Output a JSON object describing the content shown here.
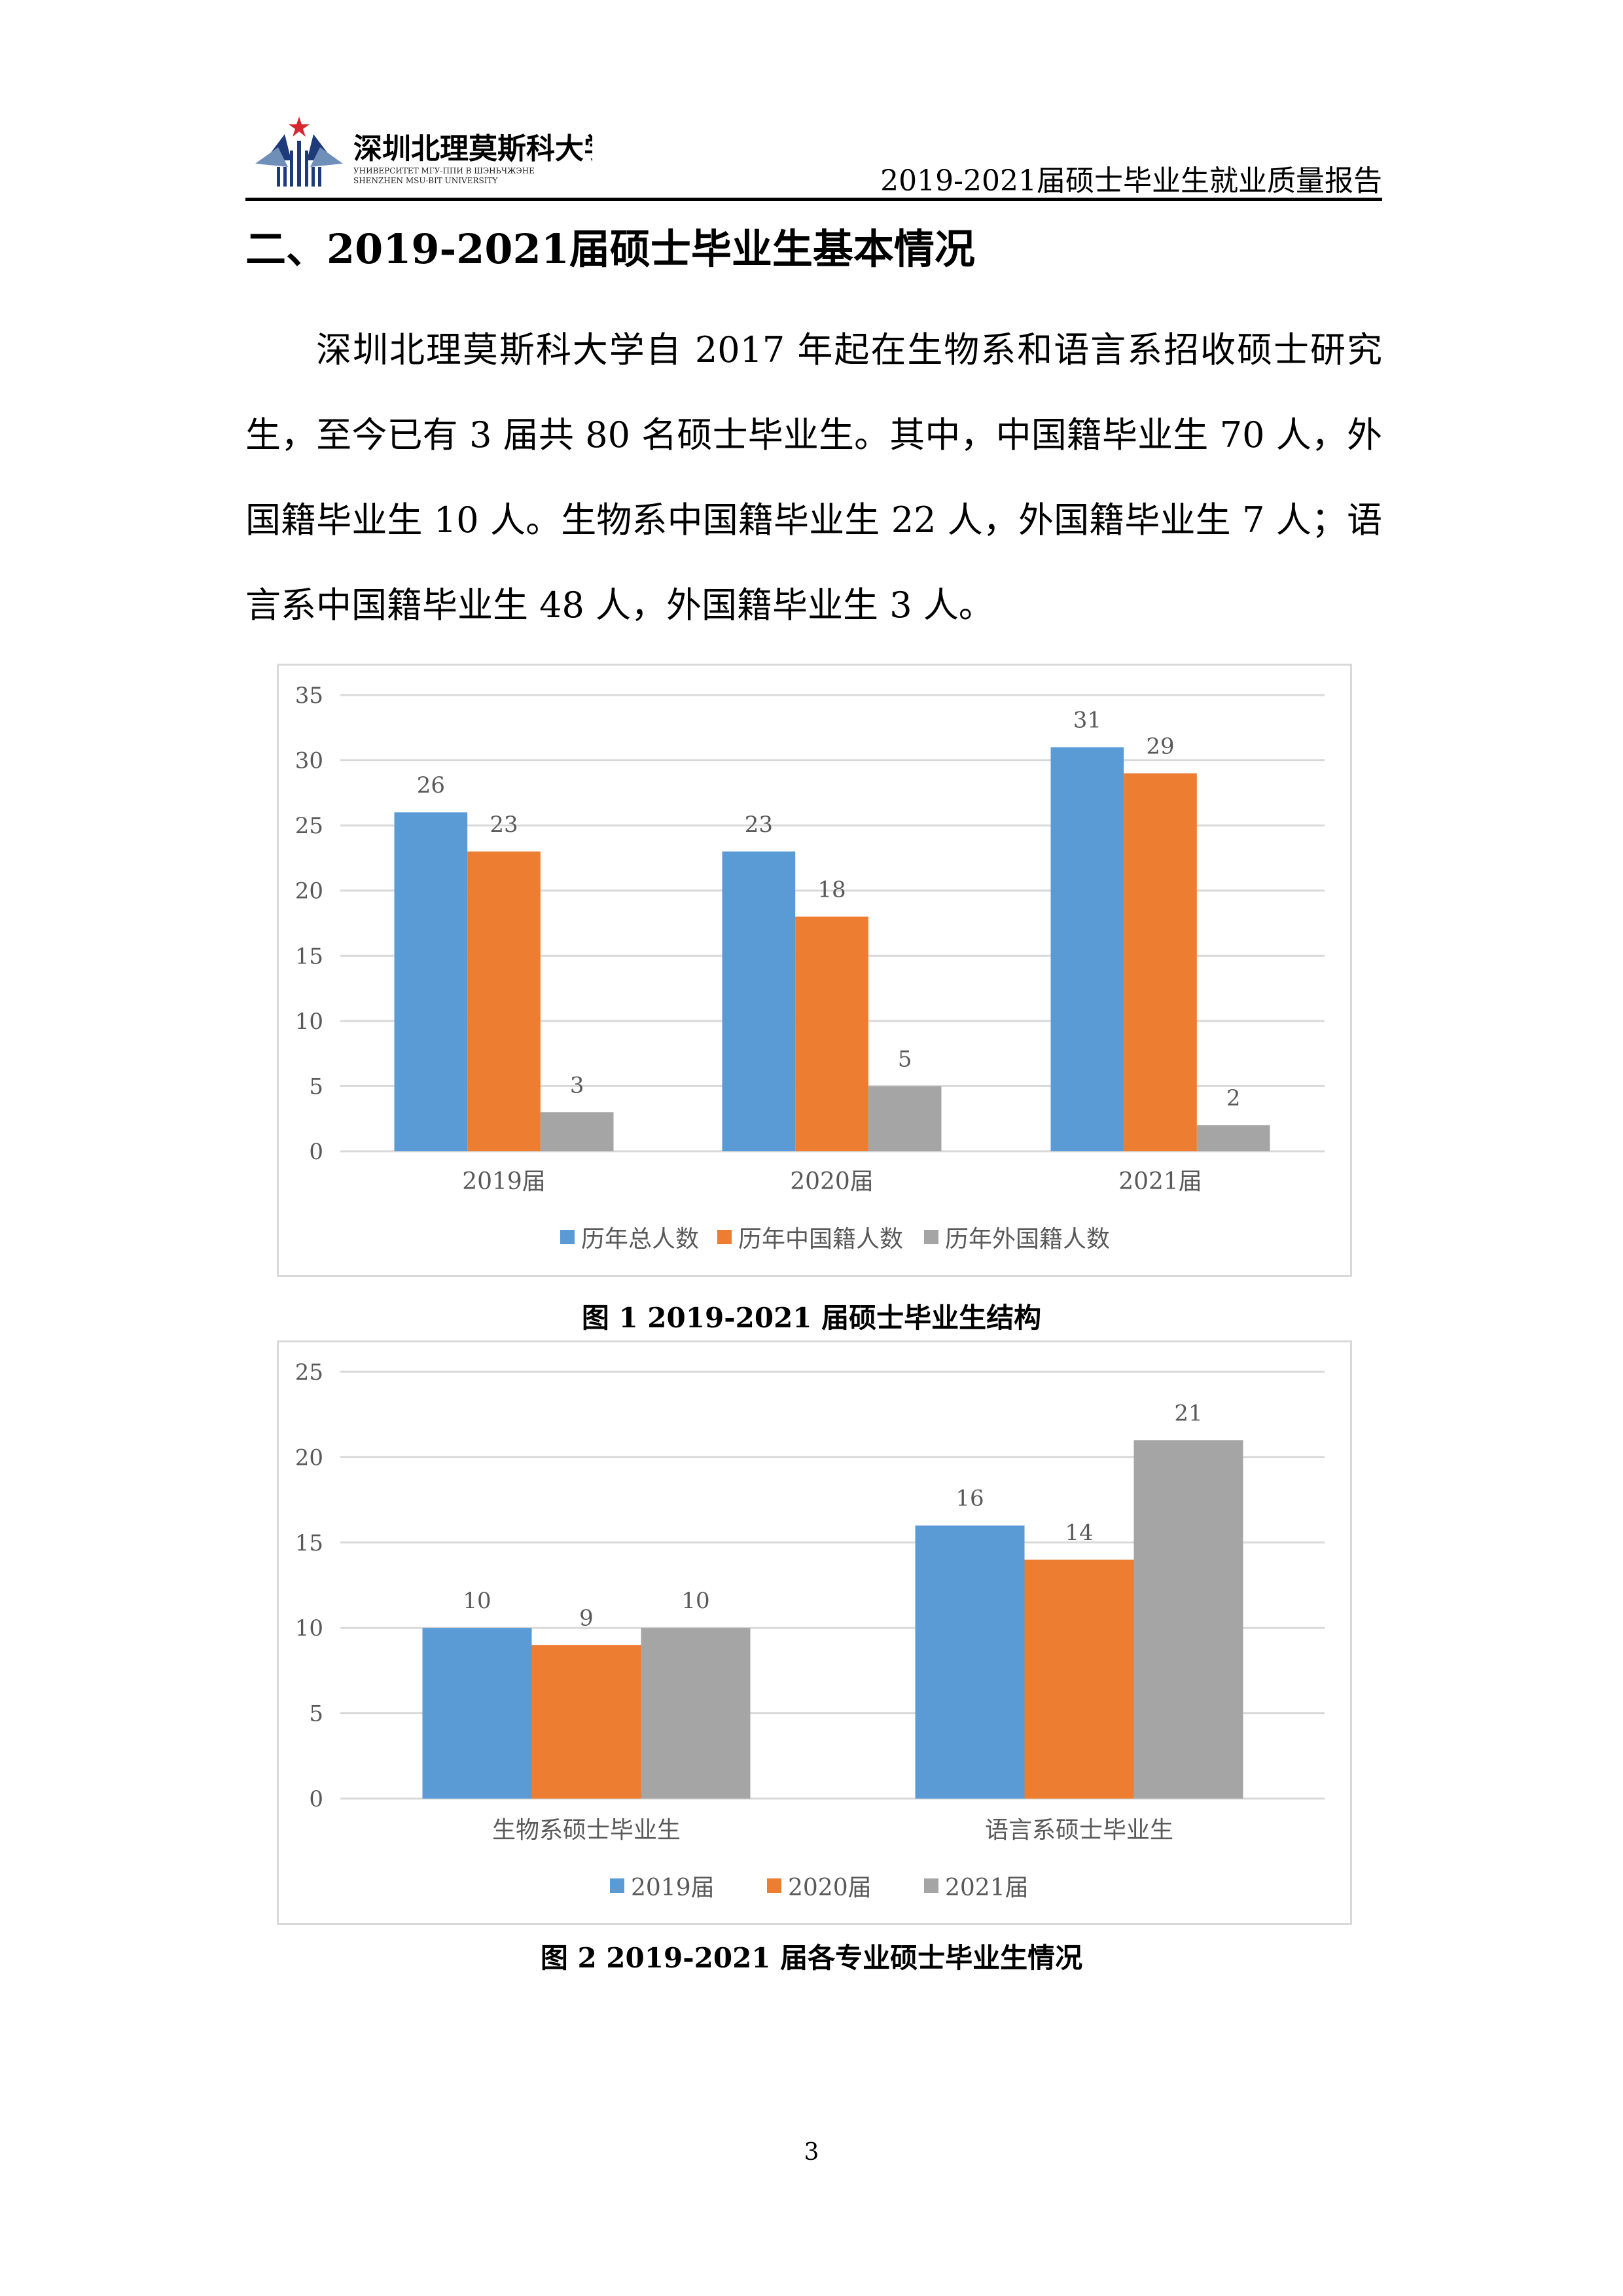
{
  "header": {
    "logo_text_cn": "深圳北理莫斯科大学",
    "logo_text_ru": "УНИВЕРСИТЕТ МГУ-ППИ В ШЭНЬЧЖЭНЕ",
    "logo_text_en": "SHENZHEN MSU-BIT UNIVERSITY",
    "title": "2019-2021届硕士毕业生就业质量报告"
  },
  "section_title": "二、2019-2021届硕士毕业生基本情况",
  "paragraph": "深圳北理莫斯科大学自 2017 年起在生物系和语言系招收硕士研究生，至今已有 3 届共 80 名硕士毕业生。其中，中国籍毕业生 70 人，外国籍毕业生 10 人。生物系中国籍毕业生 22 人，外国籍毕业生 7 人；语言系中国籍毕业生 48 人，外国籍毕业生 3 人。",
  "captions": {
    "fig1": "图 1 2019-2021 届硕士毕业生结构",
    "fig2": "图 2 2019-2021 届各专业硕士毕业生情况"
  },
  "page_number": "3",
  "chart_data": [
    {
      "type": "bar",
      "categories": [
        "2019届",
        "2020届",
        "2021届"
      ],
      "series": [
        {
          "name": "历年总人数",
          "values": [
            26,
            23,
            31
          ],
          "color": "#5b9bd5"
        },
        {
          "name": "历年中国籍人数",
          "values": [
            23,
            18,
            29
          ],
          "color": "#ed7d31"
        },
        {
          "name": "历年外国籍人数",
          "values": [
            3,
            5,
            2
          ],
          "color": "#a5a5a5"
        }
      ],
      "ylim": [
        0,
        35
      ],
      "yticks": [
        0,
        5,
        10,
        15,
        20,
        25,
        30,
        35
      ],
      "grid": true,
      "legend": "bottom"
    },
    {
      "type": "bar",
      "categories": [
        "生物系硕士毕业生",
        "语言系硕士毕业生"
      ],
      "series": [
        {
          "name": "2019届",
          "values": [
            10,
            16
          ],
          "color": "#5b9bd5"
        },
        {
          "name": "2020届",
          "values": [
            9,
            14
          ],
          "color": "#ed7d31"
        },
        {
          "name": "2021届",
          "values": [
            10,
            21
          ],
          "color": "#a5a5a5"
        }
      ],
      "ylim": [
        0,
        25
      ],
      "yticks": [
        0,
        5,
        10,
        15,
        20,
        25
      ],
      "grid": true,
      "legend": "bottom"
    }
  ]
}
